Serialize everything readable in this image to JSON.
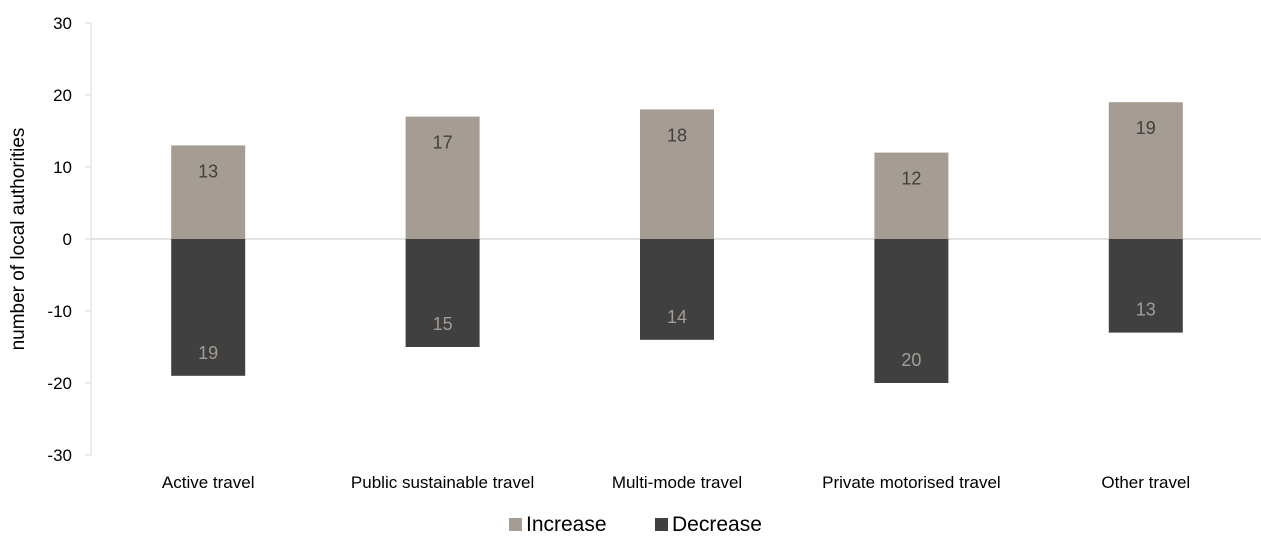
{
  "chart_data": {
    "type": "bar",
    "stacked": true,
    "categories": [
      "Active travel",
      "Public sustainable travel",
      "Multi-mode travel",
      "Private motorised travel",
      "Other travel"
    ],
    "series": [
      {
        "name": "Increase",
        "values": [
          13,
          17,
          18,
          12,
          19
        ],
        "labels": [
          "13",
          "17",
          "18",
          "12",
          "19"
        ],
        "color": "#a59c94",
        "label_color": "#404040"
      },
      {
        "name": "Decrease",
        "values": [
          -19,
          -15,
          -14,
          -20,
          -13
        ],
        "labels": [
          "19",
          "15",
          "14",
          "20",
          "13"
        ],
        "color": "#404040",
        "label_color": "#a59c94"
      }
    ],
    "ylabel": "number of local authorities",
    "xlabel": "",
    "ylim": [
      -30,
      30
    ],
    "yticks": [
      -30,
      -20,
      -10,
      0,
      10,
      20,
      30
    ],
    "ytick_labels": [
      "-30",
      "-20",
      "-10",
      "0",
      "10",
      "20",
      "30"
    ],
    "grid": false,
    "legend_position": "bottom-center",
    "axis_color": "#d9d9d9"
  }
}
